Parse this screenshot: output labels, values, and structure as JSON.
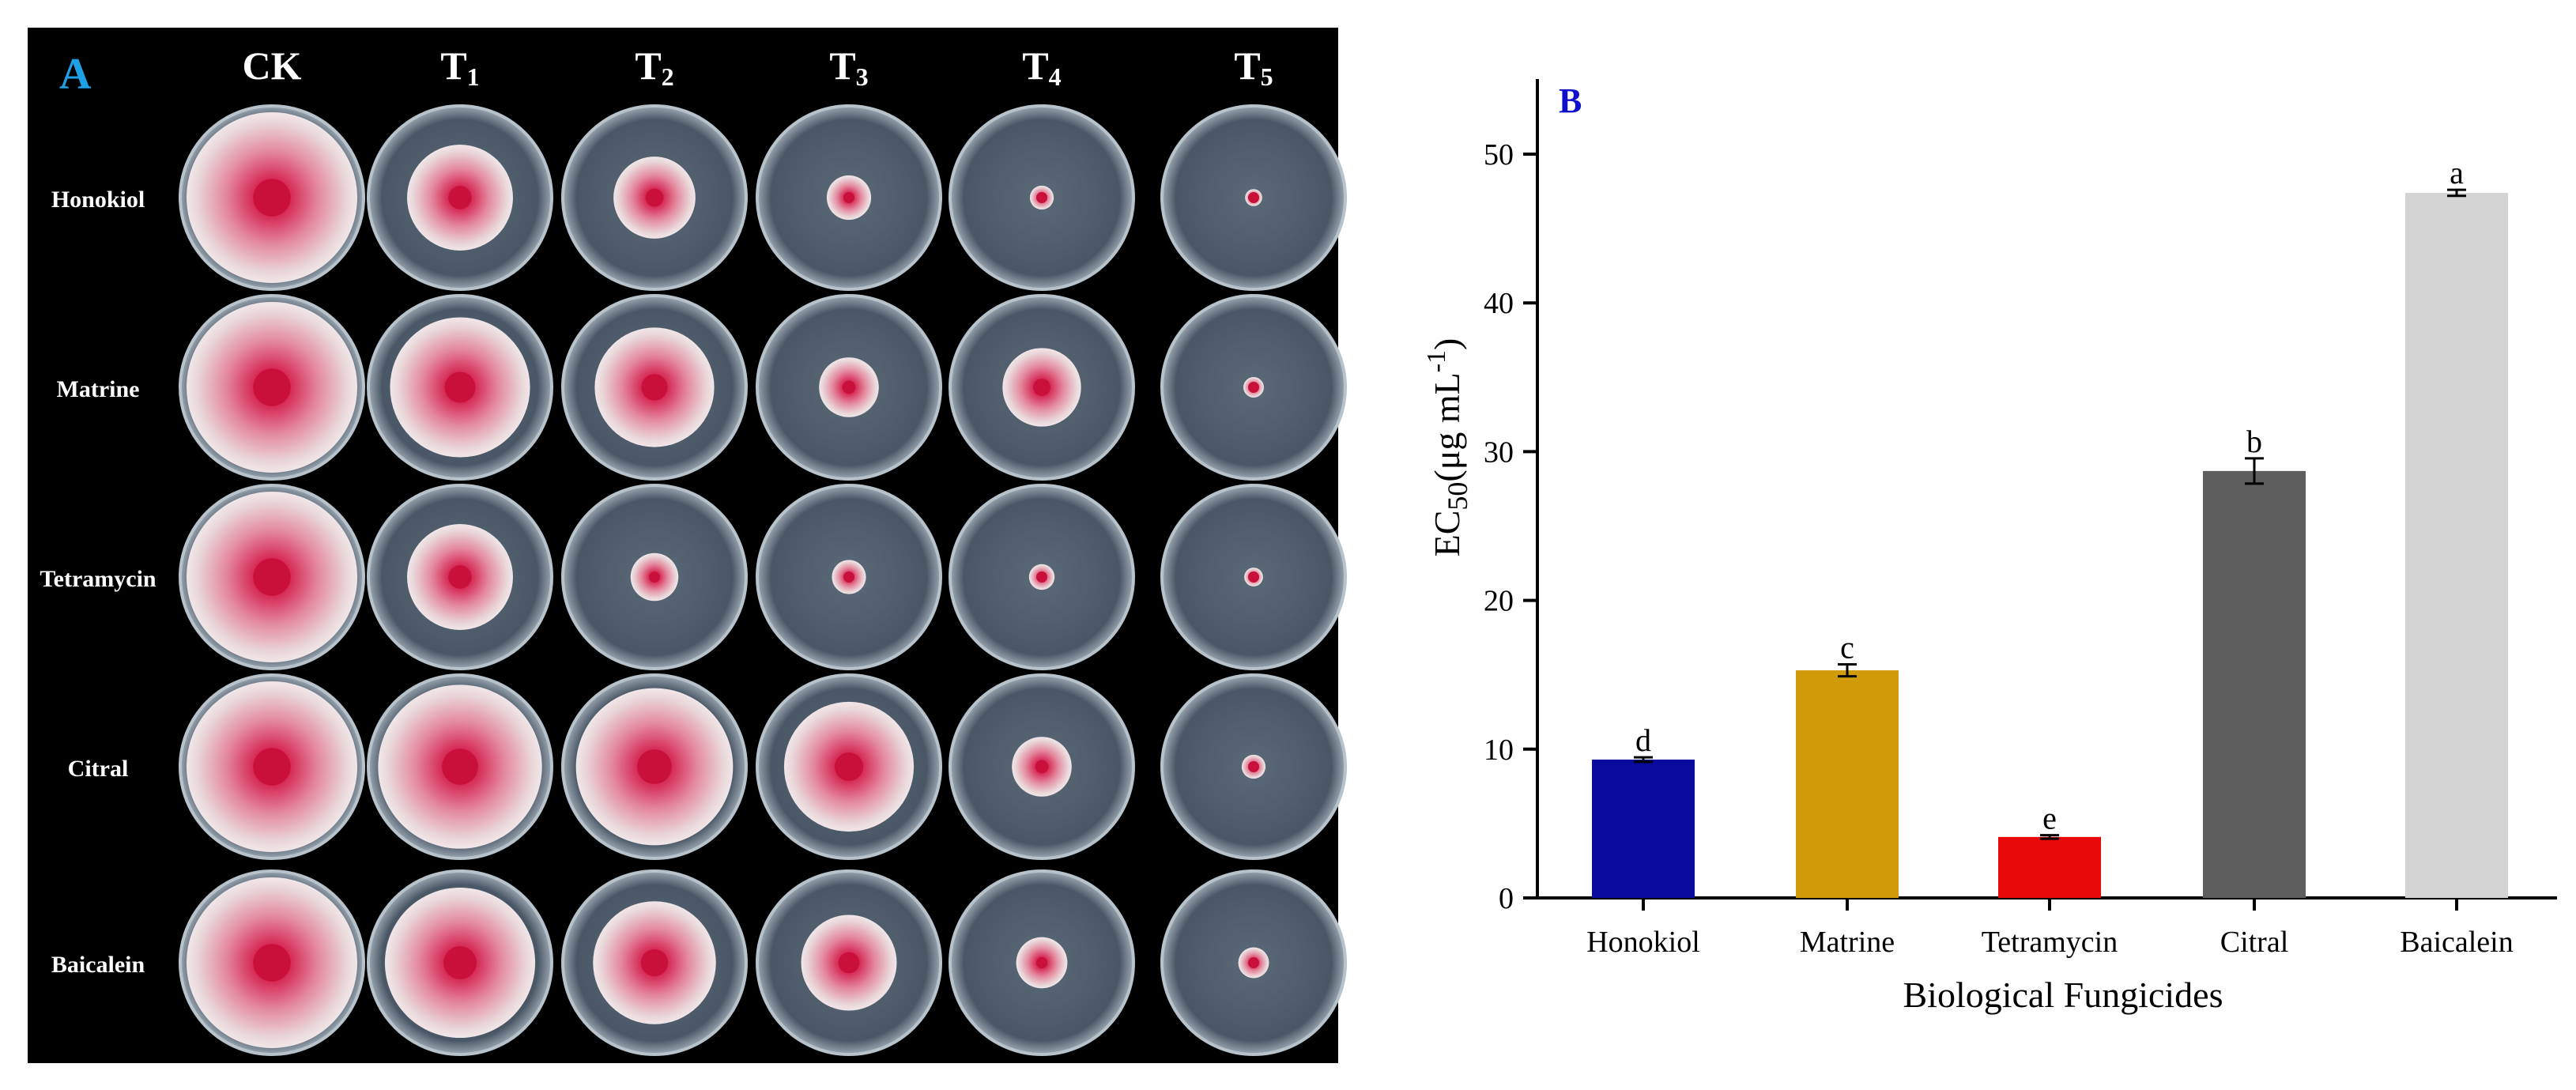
{
  "panel_a": {
    "label": "A",
    "columns": [
      "CK",
      "T1",
      "T2",
      "T3",
      "T4",
      "T5"
    ],
    "column_subscripts": [
      "",
      "1",
      "2",
      "3",
      "4",
      "5"
    ],
    "column_bases": [
      "CK",
      "T",
      "T",
      "T",
      "T",
      "T"
    ],
    "rows": [
      "Honokiol",
      "Matrine",
      "Tetramycin",
      "Citral",
      "Baicalein"
    ],
    "colony_scale": [
      [
        1.0,
        0.62,
        0.48,
        0.26,
        0.14,
        0.1
      ],
      [
        1.0,
        0.82,
        0.7,
        0.35,
        0.46,
        0.12
      ],
      [
        1.0,
        0.62,
        0.28,
        0.2,
        0.15,
        0.11
      ],
      [
        1.0,
        0.96,
        0.92,
        0.76,
        0.35,
        0.14
      ],
      [
        1.0,
        0.88,
        0.72,
        0.56,
        0.3,
        0.18
      ]
    ],
    "colors": {
      "background": "#000000",
      "agar": "#4a5766",
      "colony_center": "#c8103a",
      "colony_edge": "#e9d6d9"
    }
  },
  "chart_data": {
    "type": "bar",
    "panel_label": "B",
    "title": "",
    "categories": [
      "Honokiol",
      "Matrine",
      "Tetramycin",
      "Citral",
      "Baicalein"
    ],
    "values": [
      9.3,
      15.3,
      4.1,
      28.7,
      47.4
    ],
    "errors": [
      0.15,
      0.4,
      0.12,
      0.85,
      0.2
    ],
    "significance_letters": [
      "d",
      "c",
      "e",
      "b",
      "a"
    ],
    "bar_colors": [
      "#0a0a9c",
      "#d09a08",
      "#e80808",
      "#5e5e5e",
      "#d4d4d4"
    ],
    "xlabel": "Biological Fungicides",
    "ylabel": {
      "base": "EC",
      "subscript": "50",
      "text": "(μg mL",
      "superscript": "-1",
      "close": ")"
    },
    "ylim": [
      0,
      55
    ],
    "yticks": [
      0,
      10,
      20,
      30,
      40,
      50
    ],
    "grid": false,
    "colors": {
      "panel_label": "#1010cc",
      "axis": "#000000"
    }
  }
}
